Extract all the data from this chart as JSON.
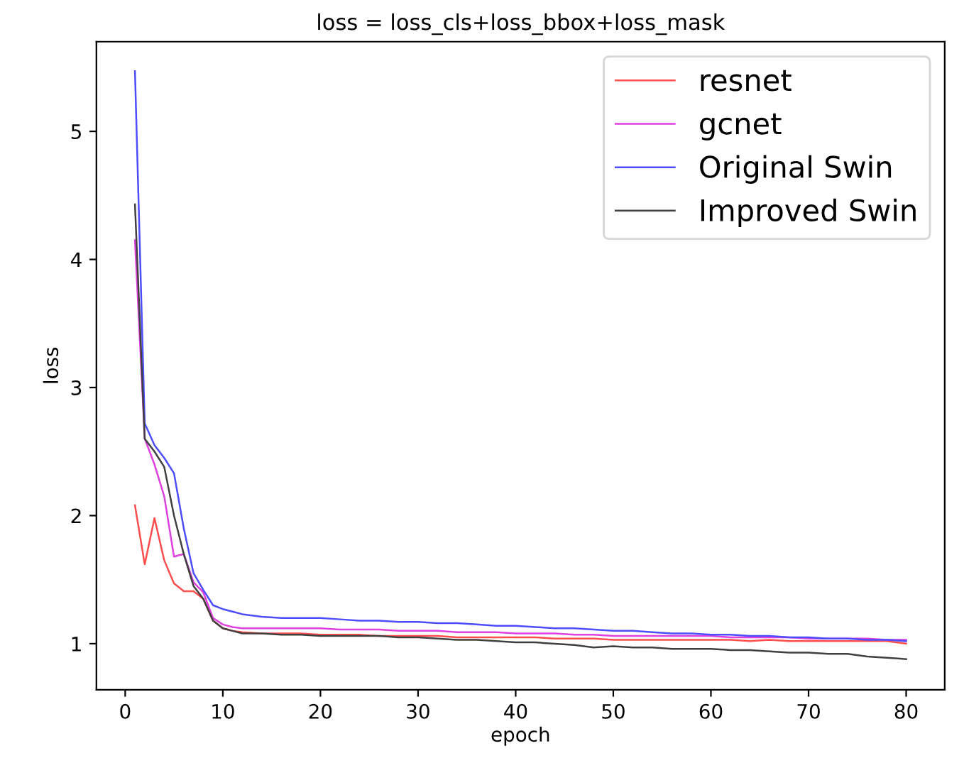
{
  "chart_data": {
    "type": "line",
    "title": "loss = loss_cls+loss_bbox+loss_mask",
    "xlabel": "epoch",
    "ylabel": "loss",
    "x": [
      1,
      2,
      3,
      4,
      5,
      6,
      7,
      8,
      9,
      10,
      11,
      12,
      14,
      16,
      18,
      20,
      22,
      24,
      26,
      28,
      30,
      32,
      34,
      36,
      38,
      40,
      42,
      44,
      46,
      48,
      50,
      52,
      54,
      56,
      58,
      60,
      62,
      64,
      66,
      68,
      70,
      72,
      74,
      76,
      78,
      80
    ],
    "series": [
      {
        "name": "resnet",
        "color": "#ff4d4d",
        "values": [
          2.08,
          1.62,
          1.98,
          1.65,
          1.47,
          1.41,
          1.41,
          1.35,
          1.18,
          1.12,
          1.1,
          1.09,
          1.08,
          1.08,
          1.08,
          1.07,
          1.07,
          1.07,
          1.06,
          1.06,
          1.06,
          1.06,
          1.05,
          1.05,
          1.05,
          1.05,
          1.05,
          1.04,
          1.04,
          1.04,
          1.03,
          1.03,
          1.03,
          1.03,
          1.03,
          1.03,
          1.03,
          1.02,
          1.03,
          1.02,
          1.02,
          1.02,
          1.02,
          1.02,
          1.02,
          1.0
        ]
      },
      {
        "name": "gcnet",
        "color": "#e040e0",
        "values": [
          4.15,
          2.6,
          2.4,
          2.15,
          1.68,
          1.7,
          1.48,
          1.4,
          1.2,
          1.15,
          1.13,
          1.12,
          1.12,
          1.12,
          1.12,
          1.12,
          1.11,
          1.11,
          1.11,
          1.1,
          1.1,
          1.1,
          1.09,
          1.09,
          1.09,
          1.08,
          1.08,
          1.08,
          1.07,
          1.07,
          1.06,
          1.06,
          1.06,
          1.06,
          1.06,
          1.06,
          1.05,
          1.05,
          1.05,
          1.05,
          1.04,
          1.04,
          1.04,
          1.04,
          1.03,
          1.03
        ]
      },
      {
        "name": "Original Swin",
        "color": "#4d4dff",
        "values": [
          5.47,
          2.72,
          2.55,
          2.45,
          2.33,
          1.9,
          1.55,
          1.42,
          1.3,
          1.27,
          1.25,
          1.23,
          1.21,
          1.2,
          1.2,
          1.2,
          1.19,
          1.18,
          1.18,
          1.17,
          1.17,
          1.16,
          1.16,
          1.15,
          1.14,
          1.14,
          1.13,
          1.12,
          1.12,
          1.11,
          1.1,
          1.1,
          1.09,
          1.08,
          1.08,
          1.07,
          1.07,
          1.06,
          1.06,
          1.05,
          1.05,
          1.04,
          1.04,
          1.03,
          1.03,
          1.02
        ]
      },
      {
        "name": "Improved Swin",
        "color": "#404040",
        "values": [
          4.43,
          2.6,
          2.5,
          2.38,
          2.0,
          1.7,
          1.45,
          1.35,
          1.18,
          1.12,
          1.1,
          1.08,
          1.08,
          1.07,
          1.07,
          1.06,
          1.06,
          1.06,
          1.06,
          1.05,
          1.05,
          1.04,
          1.03,
          1.03,
          1.02,
          1.01,
          1.01,
          1.0,
          0.99,
          0.97,
          0.98,
          0.97,
          0.97,
          0.96,
          0.96,
          0.96,
          0.95,
          0.95,
          0.94,
          0.93,
          0.93,
          0.92,
          0.92,
          0.9,
          0.89,
          0.88
        ]
      }
    ],
    "xlim": [
      -2.95,
      83.95
    ],
    "ylim": [
      0.64,
      5.7
    ],
    "xticks": [
      0,
      10,
      20,
      30,
      40,
      50,
      60,
      70,
      80
    ],
    "yticks": [
      1,
      2,
      3,
      4,
      5
    ],
    "legend": "top right",
    "grid": false,
    "line_style": "solid",
    "marker": "none"
  }
}
